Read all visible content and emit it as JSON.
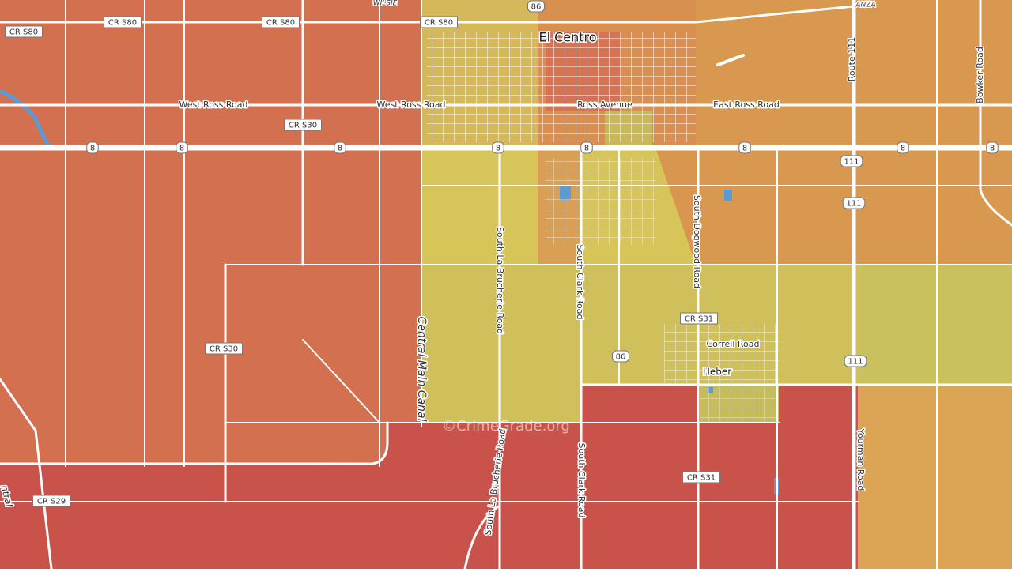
{
  "map": {
    "place_labels": [
      "El Centro",
      "Heber"
    ],
    "road_labels": [
      "WILSIE",
      "ANZA",
      "West Ross Road",
      "West Ross Road",
      "Ross Avenue",
      "East Ross Road",
      "Route 111",
      "Bowker Road",
      "South La Brucherie Road",
      "South Clark Road",
      "South Dogwood Road",
      "Correll Road",
      "Yourman Road",
      "South La Brucherie Road",
      "South Clark Road",
      "Central Main Canal",
      "ntral"
    ],
    "shields": [
      "CR S80",
      "CR S80",
      "CR S80",
      "CR S80",
      "86",
      "86",
      "CR S30",
      "CR S30",
      "8",
      "8",
      "8",
      "8",
      "8",
      "8",
      "8",
      "8",
      "111",
      "111",
      "111",
      "CR S31",
      "CR S31",
      "CR S29"
    ],
    "attribution": "©CrimeGrade.org"
  }
}
